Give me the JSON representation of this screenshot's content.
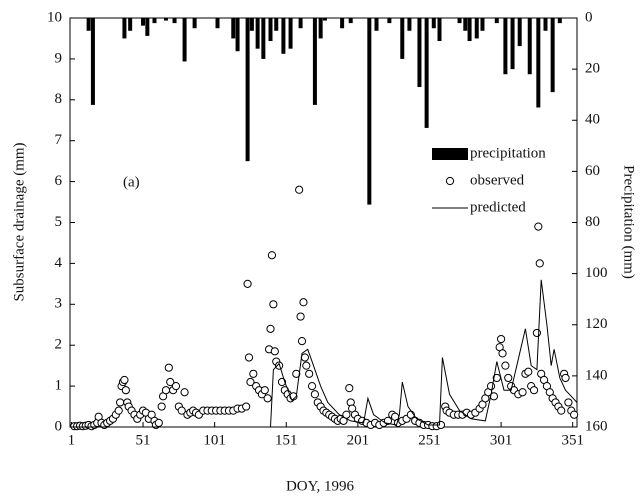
{
  "chart_data": {
    "type": "combo",
    "xlabel": "DOY, 1996",
    "ylabel": "Subsurface drainage (mm)",
    "y2label": "Precipitation (mm)",
    "annotation": "(a)",
    "xlim": [
      0,
      354
    ],
    "xticks": [
      1,
      51,
      101,
      151,
      201,
      251,
      301,
      351
    ],
    "ylim": [
      0,
      10
    ],
    "yticks": [
      0,
      1,
      2,
      3,
      4,
      5,
      6,
      7,
      8,
      9,
      10
    ],
    "y2lim": [
      0,
      160
    ],
    "y2_inverted": true,
    "y2ticks": [
      0,
      20,
      40,
      60,
      80,
      100,
      120,
      140,
      160
    ],
    "legend": "right",
    "series": [
      {
        "name": "precipitation",
        "type": "bar",
        "axis": "y2",
        "color": "#000000",
        "x": [
          13,
          16,
          38,
          42,
          51,
          54,
          59,
          67,
          73,
          80,
          87,
          103,
          114,
          117,
          124,
          127,
          131,
          135,
          140,
          144,
          149,
          154,
          161,
          171,
          175,
          178,
          190,
          196,
          209,
          214,
          223,
          232,
          237,
          244,
          249,
          254,
          258,
          272,
          276,
          279,
          284,
          288,
          298,
          304,
          309,
          314,
          321,
          327,
          332,
          337,
          342
        ],
        "values": [
          5,
          34,
          8,
          5,
          3,
          7,
          2,
          1,
          2,
          17,
          4,
          4,
          8,
          13,
          56,
          5,
          12,
          16,
          9,
          5,
          14,
          12,
          4,
          34,
          8,
          1,
          4,
          2,
          73,
          5,
          2,
          16,
          5,
          27,
          43,
          4,
          9,
          2,
          5,
          9,
          8,
          5,
          2,
          22,
          20,
          11,
          22,
          35,
          5,
          29,
          2
        ]
      },
      {
        "name": "observed",
        "type": "scatter",
        "color": "#000000",
        "x": [
          3,
          5,
          7,
          9,
          11,
          13,
          15,
          17,
          19,
          20,
          22,
          24,
          26,
          28,
          30,
          32,
          34,
          35,
          36,
          37,
          38,
          39,
          40,
          41,
          43,
          45,
          47,
          49,
          51,
          53,
          55,
          57,
          59,
          60,
          62,
          64,
          65,
          67,
          69,
          70,
          72,
          74,
          76,
          78,
          80,
          82,
          84,
          86,
          88,
          90,
          93,
          96,
          99,
          102,
          105,
          108,
          111,
          114,
          117,
          120,
          123,
          124,
          125,
          126,
          128,
          130,
          132,
          134,
          136,
          138,
          139,
          140,
          141,
          142,
          143,
          144,
          146,
          148,
          150,
          152,
          154,
          156,
          158,
          160,
          161,
          162,
          163,
          164,
          165,
          167,
          169,
          171,
          173,
          175,
          177,
          179,
          181,
          183,
          185,
          187,
          189,
          191,
          193,
          195,
          196,
          197,
          199,
          201,
          204,
          207,
          210,
          213,
          216,
          219,
          222,
          225,
          227,
          229,
          232,
          235,
          238,
          241,
          244,
          247,
          250,
          253,
          256,
          259,
          262,
          263,
          265,
          268,
          271,
          274,
          277,
          280,
          283,
          286,
          288,
          290,
          292,
          294,
          296,
          298,
          300,
          301,
          302,
          304,
          306,
          308,
          310,
          313,
          316,
          318,
          320,
          322,
          324,
          326,
          327,
          328,
          329,
          331,
          333,
          335,
          337,
          339,
          341,
          343,
          345,
          346,
          348,
          350,
          352
        ],
        "values": [
          0.02,
          0.02,
          0.03,
          0.02,
          0.03,
          0.05,
          0.02,
          0.05,
          0.1,
          0.25,
          0.1,
          0.05,
          0.1,
          0.15,
          0.2,
          0.3,
          0.4,
          0.6,
          1.0,
          1.1,
          1.15,
          0.9,
          0.6,
          0.5,
          0.4,
          0.3,
          0.2,
          0.3,
          0.4,
          0.35,
          0.2,
          0.3,
          0.15,
          0.05,
          0.1,
          0.5,
          0.75,
          0.9,
          1.45,
          1.1,
          0.9,
          1.0,
          0.5,
          0.4,
          0.85,
          0.3,
          0.35,
          0.4,
          0.35,
          0.3,
          0.4,
          0.4,
          0.4,
          0.4,
          0.4,
          0.4,
          0.4,
          0.4,
          0.45,
          0.45,
          0.5,
          3.5,
          1.7,
          1.1,
          1.3,
          1.0,
          0.9,
          0.8,
          0.9,
          0.7,
          1.9,
          2.4,
          4.2,
          3.0,
          1.85,
          1.6,
          1.5,
          1.1,
          0.9,
          0.8,
          0.7,
          0.75,
          1.3,
          5.8,
          2.7,
          2.1,
          3.05,
          1.7,
          1.5,
          1.3,
          1.0,
          0.8,
          0.6,
          0.5,
          0.4,
          0.35,
          0.3,
          0.25,
          0.2,
          0.15,
          0.2,
          0.15,
          0.3,
          0.95,
          0.6,
          0.45,
          0.3,
          0.2,
          0.15,
          0.1,
          0.05,
          0.1,
          0.05,
          0.1,
          0.15,
          0.3,
          0.25,
          0.1,
          0.15,
          0.2,
          0.3,
          0.15,
          0.1,
          0.05,
          0.05,
          0.02,
          0.02,
          0.05,
          0.5,
          0.4,
          0.35,
          0.3,
          0.3,
          0.3,
          0.35,
          0.3,
          0.35,
          0.45,
          0.55,
          0.7,
          0.85,
          1.0,
          0.75,
          1.2,
          1.95,
          2.15,
          1.8,
          1.5,
          1.2,
          1.0,
          0.9,
          0.8,
          0.85,
          1.3,
          1.35,
          1.0,
          0.9,
          2.3,
          4.9,
          4.0,
          1.3,
          1.15,
          1.0,
          0.85,
          0.7,
          0.6,
          0.5,
          0.4,
          1.3,
          1.2,
          0.6,
          0.4,
          0.3
        ]
      },
      {
        "name": "predicted",
        "type": "line",
        "color": "#000000",
        "x": [
          0,
          140,
          142,
          146,
          150,
          155,
          158,
          162,
          166,
          170,
          175,
          180,
          188,
          196,
          205,
          208,
          212,
          220,
          228,
          230,
          232,
          236,
          242,
          250,
          258,
          260,
          265,
          272,
          280,
          290,
          294,
          298,
          303,
          308,
          312,
          318,
          322,
          326,
          329,
          333,
          336,
          338,
          342,
          346,
          350,
          354
        ],
        "values": [
          0,
          0,
          1.4,
          1.55,
          1.1,
          0.65,
          0.75,
          1.8,
          1.9,
          1.5,
          1.0,
          0.6,
          0.3,
          0.15,
          0.1,
          0.7,
          0.3,
          0.1,
          0.05,
          0.3,
          1.1,
          0.5,
          0.2,
          0.05,
          0.05,
          1.7,
          0.8,
          0.4,
          0.2,
          0.15,
          0.8,
          1.6,
          0.9,
          0.9,
          1.5,
          2.4,
          1.5,
          1.4,
          3.6,
          2.5,
          1.5,
          1.9,
          1.2,
          0.9,
          0.75,
          0.6
        ]
      }
    ]
  }
}
